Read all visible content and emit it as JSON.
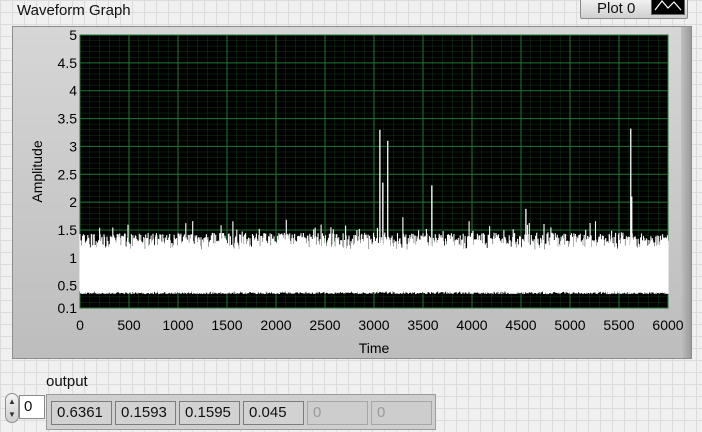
{
  "graph": {
    "title": "Waveform Graph",
    "legend_label": "Plot 0",
    "x_label": "Time",
    "y_label": "Amplitude",
    "x_ticks": [
      "0",
      "500",
      "1000",
      "1500",
      "2000",
      "2500",
      "3000",
      "3500",
      "4000",
      "4500",
      "5000",
      "5500",
      "6000"
    ],
    "y_ticks": [
      "5",
      "4.5",
      "4",
      "3.5",
      "3",
      "2.5",
      "2",
      "1.5",
      "1",
      "0.5",
      "0.1"
    ]
  },
  "chart_data": {
    "type": "line",
    "title": "Waveform Graph",
    "xlabel": "Time",
    "ylabel": "Amplitude",
    "xlim": [
      0,
      6000
    ],
    "ylim": [
      0.1,
      5
    ],
    "grid": true,
    "series": [
      {
        "name": "Plot 0",
        "description": "dense noisy signal, oscillating between ~0.4 and ~1.5",
        "baseline_low": 0.42,
        "baseline_high": 1.3,
        "spikes": [
          {
            "x": 3060,
            "y": 3.3
          },
          {
            "x": 3090,
            "y": 2.35
          },
          {
            "x": 3140,
            "y": 3.1
          },
          {
            "x": 3590,
            "y": 2.3
          },
          {
            "x": 4550,
            "y": 1.88
          },
          {
            "x": 5620,
            "y": 3.32
          },
          {
            "x": 5630,
            "y": 2.1
          }
        ]
      }
    ]
  },
  "output": {
    "label": "output",
    "index": "0",
    "values": [
      "0.6361",
      "0.1593",
      "0.1595",
      "0.045",
      "0",
      "0"
    ]
  },
  "colors": {
    "plot_bg": "#000000",
    "grid": "#1e7a32",
    "trace": "#ffffff"
  }
}
